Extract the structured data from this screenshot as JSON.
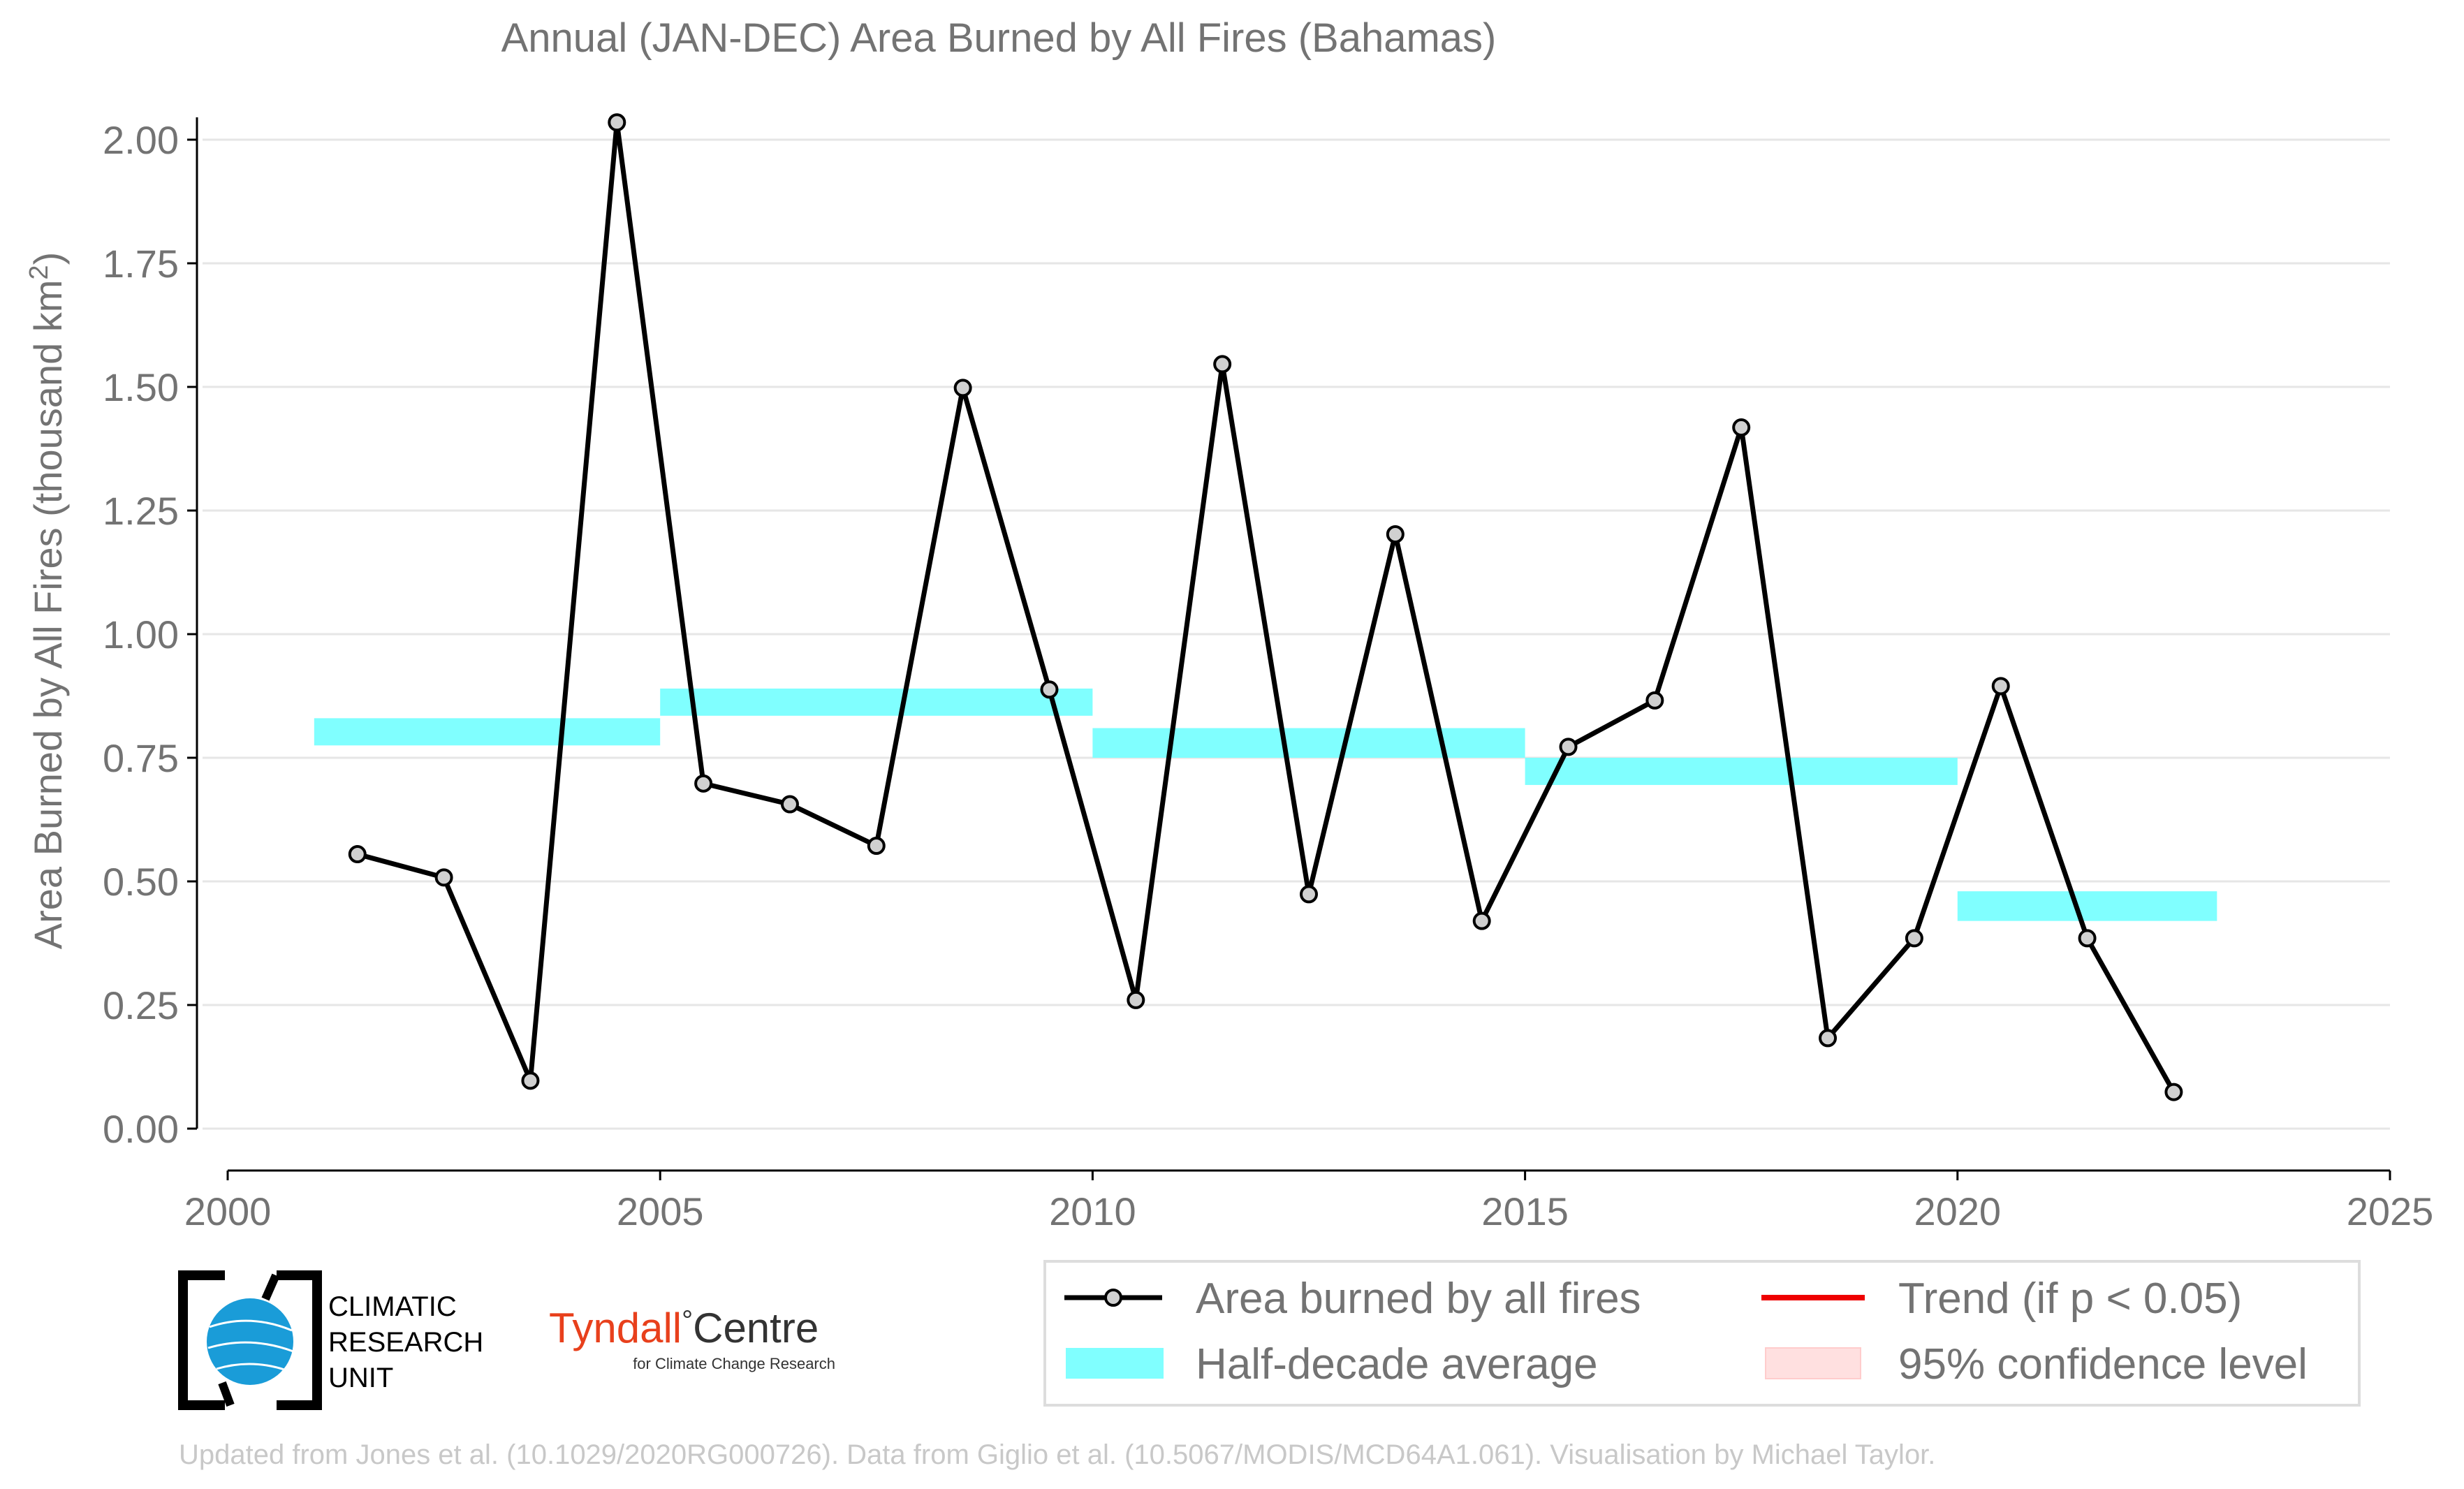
{
  "chart_data": {
    "type": "line",
    "title": "Annual (JAN-DEC) Area Burned by All Fires (Bahamas)",
    "ylabel": "Area Burned by All Fires (thousand km",
    "ylabel_sup": "2",
    "ylabel_close": ")",
    "xlim": [
      2000,
      2025
    ],
    "ylim": [
      0,
      2.0
    ],
    "x_ticks": [
      2000,
      2005,
      2010,
      2015,
      2020,
      2025
    ],
    "x_tick_labels": [
      "2000",
      "2005",
      "2010",
      "2015",
      "2020",
      "2025"
    ],
    "y_ticks": [
      0,
      0.25,
      0.5,
      0.75,
      1.0,
      1.25,
      1.5,
      1.75,
      2.0
    ],
    "y_tick_labels": [
      "0.00",
      "0.25",
      "0.50",
      "0.75",
      "1.00",
      "1.25",
      "1.50",
      "1.75",
      "2.00"
    ],
    "grid": "horizontal",
    "series": [
      {
        "name": "Area burned by all fires",
        "color": "#000000",
        "marker_fill": "#d0d0d0",
        "x": [
          2001.5,
          2002.5,
          2003.5,
          2004.5,
          2005.5,
          2006.5,
          2007.5,
          2008.5,
          2009.5,
          2010.5,
          2011.5,
          2012.5,
          2013.5,
          2014.5,
          2015.5,
          2016.5,
          2017.5,
          2018.5,
          2019.5,
          2020.5,
          2021.5,
          2022.5
        ],
        "y": [
          0.555,
          0.508,
          0.097,
          2.035,
          0.698,
          0.656,
          0.572,
          1.498,
          0.888,
          0.26,
          1.546,
          0.474,
          1.202,
          0.42,
          0.772,
          0.866,
          1.418,
          0.183,
          0.385,
          0.895,
          0.385,
          0.074
        ]
      }
    ],
    "half_decade_average": {
      "name": "Half-decade average",
      "color": "#80ffff",
      "segments": [
        {
          "x_start": 2001,
          "x_end": 2005,
          "y_low": 0.775,
          "y_high": 0.83
        },
        {
          "x_start": 2005,
          "x_end": 2010,
          "y_low": 0.835,
          "y_high": 0.89
        },
        {
          "x_start": 2010,
          "x_end": 2015,
          "y_low": 0.75,
          "y_high": 0.81
        },
        {
          "x_start": 2015,
          "x_end": 2020,
          "y_low": 0.695,
          "y_high": 0.75
        },
        {
          "x_start": 2020,
          "x_end": 2023,
          "y_low": 0.42,
          "y_high": 0.48
        }
      ]
    },
    "legend": {
      "placement": "bottom-right",
      "items": [
        {
          "key": "line",
          "label": "Area burned by all fires",
          "color": "#000000"
        },
        {
          "key": "trend",
          "label": "Trend (if p < 0.05)",
          "color": "#ee0000"
        },
        {
          "key": "band",
          "label": "Half-decade average",
          "color": "#80ffff"
        },
        {
          "key": "ci",
          "label": "95% confidence level",
          "color": "#ffe0e0"
        }
      ]
    }
  },
  "logos": {
    "cru_lines": [
      "CLIMATIC",
      "RESEARCH",
      "UNIT"
    ],
    "tyndall_name": "Tyndall",
    "tyndall_degree": "°",
    "tyndall_centre": "Centre",
    "tyndall_sub": "for Climate Change Research"
  },
  "credits": "Updated from Jones et al. (10.1029/2020RG000726). Data from Giglio et al. (10.5067/MODIS/MCD64A1.061). Visualisation by Michael Taylor."
}
